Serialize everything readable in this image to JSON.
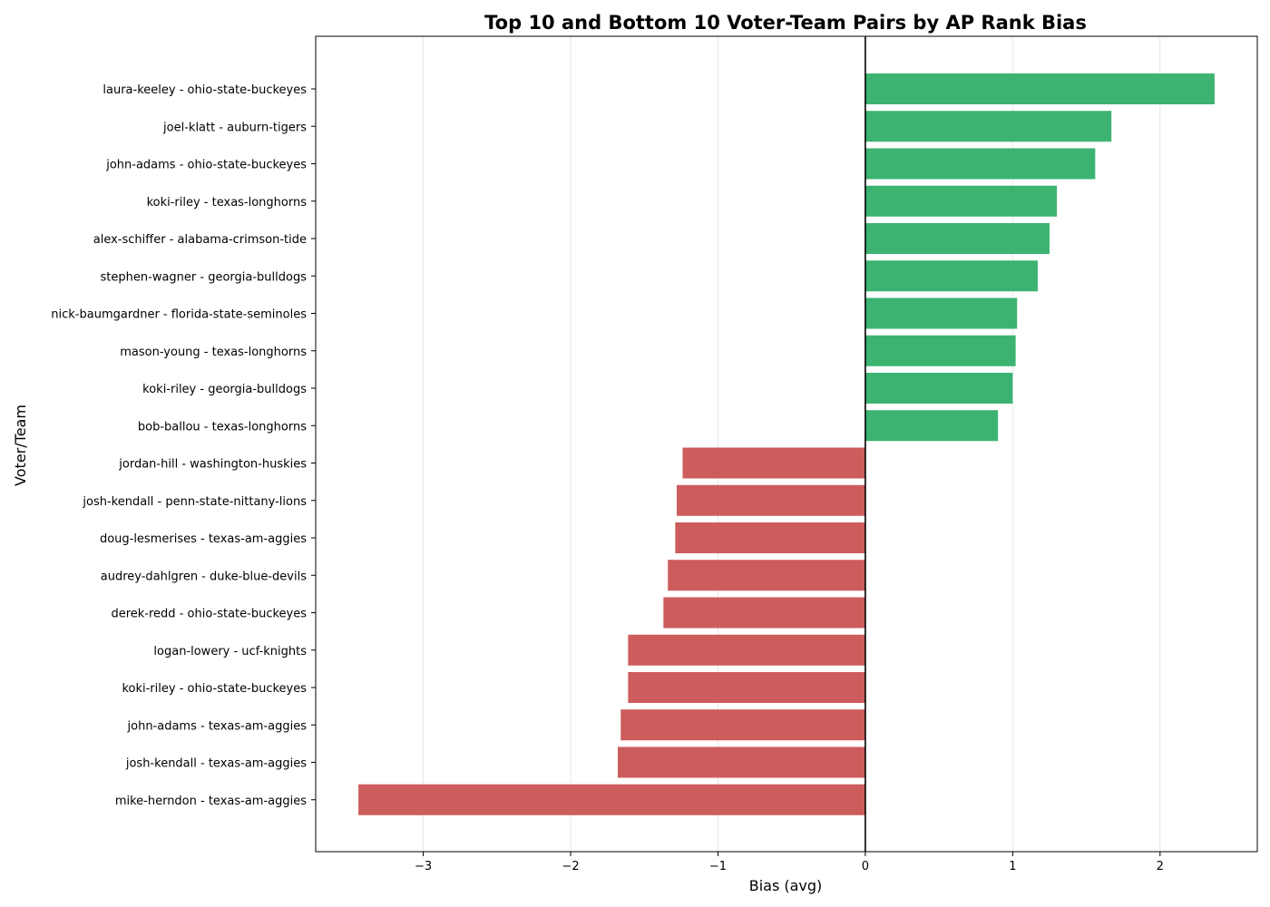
{
  "chart_data": {
    "type": "bar",
    "orientation": "horizontal",
    "title": "Top 10 and Bottom 10 Voter-Team Pairs by AP Rank Bias",
    "xlabel": "Bias (avg)",
    "ylabel": "Voter/Team",
    "xlim": [
      -3.73,
      2.66
    ],
    "xticks": [
      -3,
      -2,
      -1,
      0,
      1,
      2
    ],
    "xtick_labels": [
      "−3",
      "−2",
      "−1",
      "0",
      "1",
      "2"
    ],
    "grid": "x",
    "zero_line": true,
    "colors": {
      "positive": "#3cb371",
      "negative": "#cd5c5c"
    },
    "categories": [
      "laura-keeley - ohio-state-buckeyes",
      "joel-klatt - auburn-tigers",
      "john-adams - ohio-state-buckeyes",
      "koki-riley - texas-longhorns",
      "alex-schiffer - alabama-crimson-tide",
      "stephen-wagner - georgia-bulldogs",
      "nick-baumgardner - florida-state-seminoles",
      "mason-young - texas-longhorns",
      "koki-riley - georgia-bulldogs",
      "bob-ballou - texas-longhorns",
      "jordan-hill - washington-huskies",
      "josh-kendall - penn-state-nittany-lions",
      "doug-lesmerises - texas-am-aggies",
      "audrey-dahlgren - duke-blue-devils",
      "derek-redd - ohio-state-buckeyes",
      "logan-lowery - ucf-knights",
      "koki-riley - ohio-state-buckeyes",
      "john-adams - texas-am-aggies",
      "josh-kendall - texas-am-aggies",
      "mike-herndon - texas-am-aggies"
    ],
    "values": [
      2.37,
      1.67,
      1.56,
      1.3,
      1.25,
      1.17,
      1.03,
      1.02,
      1.0,
      0.9,
      -1.24,
      -1.28,
      -1.29,
      -1.34,
      -1.37,
      -1.61,
      -1.61,
      -1.66,
      -1.68,
      -3.44
    ]
  }
}
